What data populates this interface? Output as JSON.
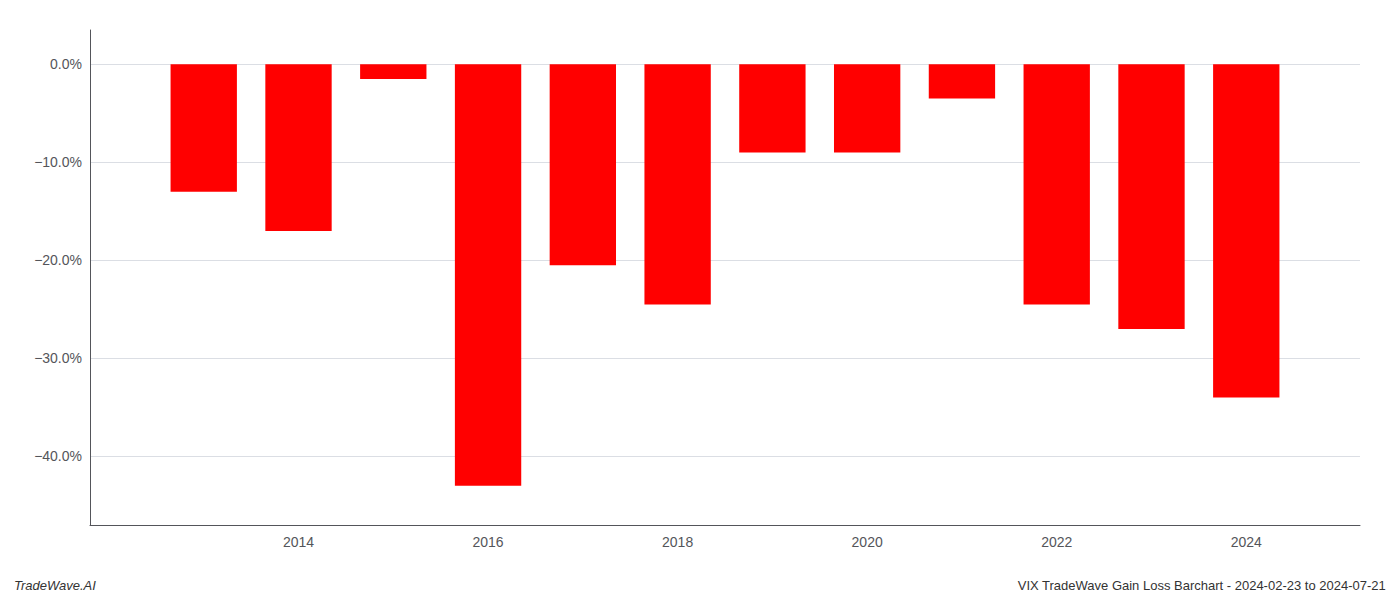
{
  "chart_data": {
    "type": "bar",
    "x": [
      2013,
      2014,
      2015,
      2016,
      2017,
      2018,
      2019,
      2020,
      2021,
      2022,
      2023,
      2024
    ],
    "values": [
      -13.0,
      -17.0,
      -1.5,
      -43.0,
      -20.5,
      -24.5,
      -9.0,
      -9.0,
      -3.5,
      -24.5,
      -27.0,
      -34.0
    ],
    "color": "#ff0000",
    "xlim": [
      2011.8,
      2025.2
    ],
    "xticks": [
      2014,
      2016,
      2018,
      2020,
      2022,
      2024
    ],
    "ylim": [
      -47,
      3.5
    ],
    "yticks": [
      {
        "value": 0.0,
        "label": "0.0%"
      },
      {
        "value": -10.0,
        "label": "−10.0%"
      },
      {
        "value": -20.0,
        "label": "−20.0%"
      },
      {
        "value": -30.0,
        "label": "−30.0%"
      },
      {
        "value": -40.0,
        "label": "−40.0%"
      }
    ],
    "grid": true,
    "annotations": [
      "TradeWave.AI",
      "VIX TradeWave Gain Loss Barchart - 2024-02-23 to 2024-07-21"
    ]
  }
}
